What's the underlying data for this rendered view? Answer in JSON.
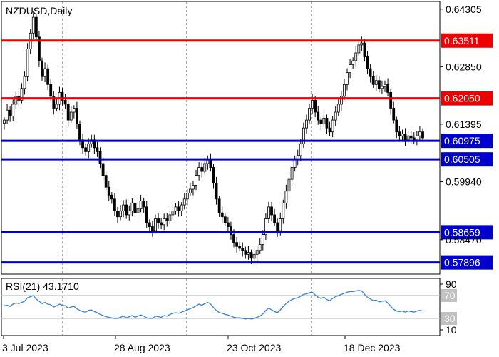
{
  "chart_data": {
    "type": "candlestick",
    "title": "NZDUSD,Daily",
    "symbol": "NZDUSD",
    "timeframe": "Daily",
    "grid": true,
    "ylim": [
      0.576,
      0.645
    ],
    "y_ticks": [
      "0.64305",
      "0.62850",
      "0.61395",
      "0.59940",
      "0.58470"
    ],
    "x_ticks": [
      "3 Jul 2023",
      "28 Aug 2023",
      "23 Oct 2023",
      "18 Dec 2023"
    ],
    "levels": [
      {
        "value": 0.63511,
        "label": "0.63511",
        "color": "#ee0000",
        "kind": "resistance"
      },
      {
        "value": 0.6205,
        "label": "0.62050",
        "color": "#ee0000",
        "kind": "resistance"
      },
      {
        "value": 0.60975,
        "label": "0.60975",
        "color": "#0000cc",
        "kind": "support"
      },
      {
        "value": 0.60505,
        "label": "0.60505",
        "color": "#0000cc",
        "kind": "support"
      },
      {
        "value": 0.58659,
        "label": "0.58659",
        "color": "#0000cc",
        "kind": "support"
      },
      {
        "value": 0.57896,
        "label": "0.57896",
        "color": "#0000cc",
        "kind": "support"
      }
    ],
    "close_path": [
      0.615,
      0.6175,
      0.616,
      0.619,
      0.621,
      0.62,
      0.623,
      0.626,
      0.633,
      0.637,
      0.641,
      0.636,
      0.63,
      0.626,
      0.628,
      0.624,
      0.621,
      0.618,
      0.619,
      0.622,
      0.62,
      0.619,
      0.615,
      0.617,
      0.618,
      0.614,
      0.61,
      0.608,
      0.607,
      0.609,
      0.61,
      0.608,
      0.607,
      0.604,
      0.601,
      0.598,
      0.596,
      0.595,
      0.592,
      0.5905,
      0.592,
      0.5935,
      0.591,
      0.592,
      0.594,
      0.5915,
      0.5925,
      0.5945,
      0.593,
      0.589,
      0.588,
      0.587,
      0.59,
      0.589,
      0.5885,
      0.59,
      0.5895,
      0.591,
      0.592,
      0.593,
      0.592,
      0.5935,
      0.595,
      0.5965,
      0.5975,
      0.5985,
      0.601,
      0.603,
      0.602,
      0.604,
      0.605,
      0.603,
      0.599,
      0.595,
      0.5915,
      0.5905,
      0.589,
      0.588,
      0.586,
      0.584,
      0.583,
      0.5825,
      0.582,
      0.581,
      0.5815,
      0.58,
      0.581,
      0.582,
      0.5835,
      0.586,
      0.59,
      0.593,
      0.591,
      0.589,
      0.587,
      0.59,
      0.594,
      0.597,
      0.6,
      0.603,
      0.605,
      0.606,
      0.609,
      0.613,
      0.615,
      0.618,
      0.62,
      0.617,
      0.615,
      0.614,
      0.6155,
      0.613,
      0.612,
      0.615,
      0.617,
      0.619,
      0.621,
      0.624,
      0.627,
      0.629,
      0.63,
      0.632,
      0.634,
      0.6345,
      0.631,
      0.628,
      0.626,
      0.624,
      0.625,
      0.623,
      0.6235,
      0.624,
      0.622,
      0.618,
      0.615,
      0.612,
      0.611,
      0.6115,
      0.61,
      0.611,
      0.6105,
      0.61,
      0.611,
      0.612,
      0.6105
    ],
    "rsi": {
      "label": "RSI(21) 43.1710",
      "period": 21,
      "current": 43.171,
      "ylim": [
        0,
        100
      ],
      "levels": [
        70,
        30
      ],
      "ticks": [
        "90",
        "70",
        "30",
        "10"
      ],
      "color": "#3380dd",
      "values": [
        52,
        53,
        51,
        55,
        57,
        56,
        58,
        60,
        66,
        68,
        70,
        64,
        60,
        56,
        58,
        55,
        54,
        50,
        52,
        55,
        53,
        52,
        48,
        50,
        51,
        47,
        44,
        42,
        41,
        44,
        45,
        42,
        40,
        37,
        35,
        33,
        32,
        31,
        30,
        30,
        32,
        34,
        31,
        33,
        35,
        32,
        34,
        36,
        34,
        31,
        30,
        30,
        34,
        33,
        32,
        35,
        34,
        37,
        39,
        40,
        39,
        41,
        43,
        45,
        47,
        49,
        52,
        55,
        53,
        56,
        58,
        55,
        49,
        44,
        40,
        39,
        37,
        36,
        34,
        32,
        31,
        31,
        30,
        29,
        30,
        29,
        30,
        32,
        34,
        38,
        44,
        48,
        45,
        42,
        40,
        45,
        51,
        56,
        60,
        63,
        65,
        66,
        69,
        72,
        73,
        75,
        76,
        71,
        67,
        65,
        67,
        63,
        61,
        65,
        68,
        70,
        72,
        74,
        76,
        77,
        77,
        78,
        79,
        78,
        72,
        67,
        64,
        61,
        62,
        59,
        60,
        61,
        57,
        51,
        46,
        43,
        42,
        43,
        41,
        43,
        42,
        41,
        43,
        44,
        43
      ]
    },
    "colors": {
      "candle": "#000000",
      "grid": "#555555",
      "level_red": "#ee0000",
      "level_blue": "#0000cc",
      "rsi_line": "#3380dd",
      "rsi_level": "#c0c0c0"
    }
  }
}
